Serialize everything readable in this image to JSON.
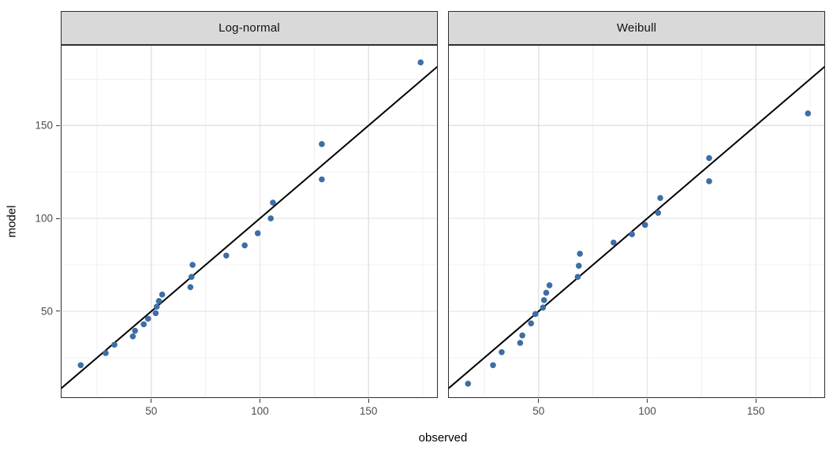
{
  "chart_data": {
    "type": "scatter",
    "title": "",
    "xlabel": "observed",
    "ylabel": "model",
    "xlim": [
      8.3,
      181.9
    ],
    "ylim": [
      3.3,
      193.4
    ],
    "x_ticks": [
      50,
      100,
      150
    ],
    "y_ticks": [
      50,
      100,
      150
    ],
    "x_minor_gridlines": [
      25,
      75,
      125,
      175
    ],
    "y_minor_gridlines": [
      25,
      75,
      125,
      175
    ],
    "grid": true,
    "legend": "none",
    "reference_line": "y = x",
    "observed": [
      17.5,
      29,
      33,
      41.5,
      42.5,
      46.5,
      48.5,
      52,
      52.5,
      53.5,
      55,
      68,
      68.5,
      69,
      84.5,
      93,
      99,
      105,
      106,
      128.5,
      128.5,
      174
    ],
    "facets": [
      {
        "label": "Log-normal",
        "model": [
          21,
          27.5,
          32,
          36.5,
          39.5,
          43,
          46,
          49,
          52.5,
          55.5,
          59,
          63,
          68.5,
          75,
          80,
          85.5,
          92,
          100,
          108.5,
          121,
          140,
          184
        ]
      },
      {
        "label": "Weibull",
        "model": [
          11,
          21,
          28,
          33,
          37,
          43.5,
          48.5,
          52,
          56,
          60,
          64,
          68.5,
          74.5,
          81,
          87,
          91.5,
          96.5,
          103,
          111,
          120,
          132.5,
          156.5
        ]
      }
    ]
  },
  "colors": {
    "point": "#3D6EA5",
    "reference_line": "#000000",
    "panel_background": "#FFFFFF",
    "panel_border": "#2E2E2E",
    "strip_background": "#D9D9D9",
    "strip_border": "#2E2E2E",
    "grid_major": "#E2E2E2",
    "grid_minor": "#F0F0F0",
    "tick_mark": "#333333",
    "tick_label": "#4D4D4D",
    "axis_title": "#000000"
  }
}
